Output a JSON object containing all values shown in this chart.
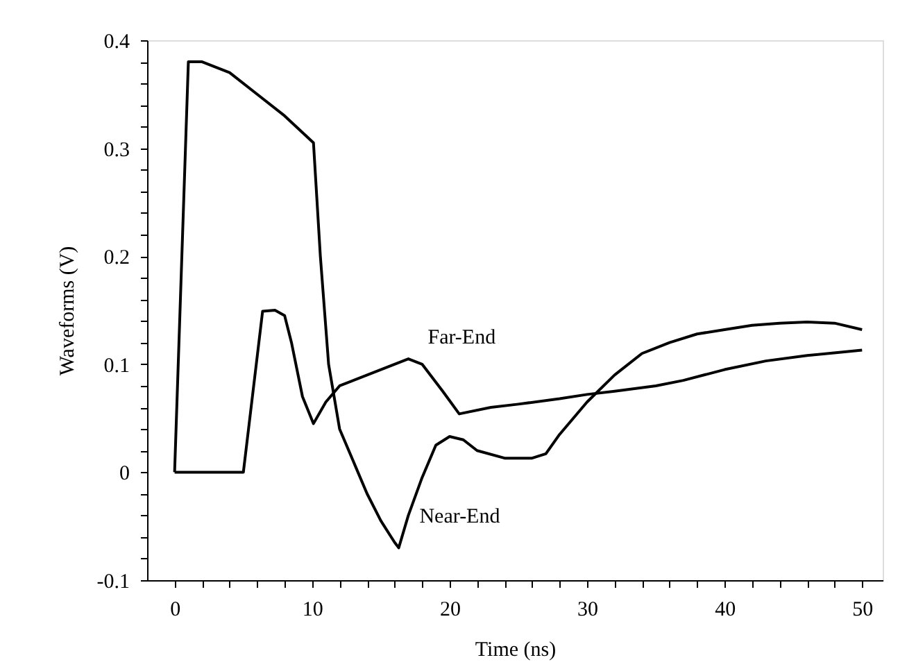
{
  "chart_data": {
    "type": "line",
    "xlabel": "Time (ns)",
    "ylabel": "Waveforms (V)",
    "xlim": [
      -2,
      51.5
    ],
    "ylim": [
      -0.1,
      0.4
    ],
    "xticks": [
      0,
      {
        "value": 2,
        "label": null
      },
      {
        "value": 4,
        "label": null
      },
      {
        "value": 6,
        "label": null
      },
      {
        "value": 8,
        "label": null
      },
      10,
      {
        "value": 12,
        "label": null
      },
      {
        "value": 14,
        "label": null
      },
      {
        "value": 16,
        "label": null
      },
      {
        "value": 18,
        "label": null
      },
      20,
      {
        "value": 22,
        "label": null
      },
      {
        "value": 24,
        "label": null
      },
      {
        "value": 26,
        "label": null
      },
      {
        "value": 28,
        "label": null
      },
      30,
      {
        "value": 32,
        "label": null
      },
      {
        "value": 34,
        "label": null
      },
      {
        "value": 36,
        "label": null
      },
      {
        "value": 38,
        "label": null
      },
      40,
      {
        "value": 42,
        "label": null
      },
      {
        "value": 44,
        "label": null
      },
      {
        "value": 46,
        "label": null
      },
      {
        "value": 48,
        "label": null
      },
      50
    ],
    "yticks": [
      -0.1,
      {
        "value": -0.08,
        "label": null
      },
      {
        "value": -0.06,
        "label": null
      },
      {
        "value": -0.04,
        "label": null
      },
      {
        "value": -0.02,
        "label": null
      },
      0,
      {
        "value": 0.02,
        "label": null
      },
      {
        "value": 0.04,
        "label": null
      },
      {
        "value": 0.06,
        "label": null
      },
      {
        "value": 0.08,
        "label": null
      },
      0.1,
      {
        "value": 0.12,
        "label": null
      },
      {
        "value": 0.14,
        "label": null
      },
      {
        "value": 0.16,
        "label": null
      },
      {
        "value": 0.18,
        "label": null
      },
      0.2,
      {
        "value": 0.22,
        "label": null
      },
      {
        "value": 0.24,
        "label": null
      },
      {
        "value": 0.26,
        "label": null
      },
      {
        "value": 0.28,
        "label": null
      },
      0.3,
      {
        "value": 0.32,
        "label": null
      },
      {
        "value": 0.34,
        "label": null
      },
      {
        "value": 0.36,
        "label": null
      },
      {
        "value": 0.38,
        "label": null
      },
      0.4
    ],
    "grid": false,
    "legend": false,
    "marker": "none",
    "line_style": "solid",
    "series": [
      {
        "color": "#000000",
        "x": [
          0,
          1,
          2,
          4,
          6,
          8,
          10.1,
          10.6,
          11.2,
          12,
          13,
          14,
          15,
          16,
          16.3,
          17,
          18,
          19,
          20,
          21,
          22,
          24,
          26,
          27,
          28,
          30,
          32,
          34,
          36,
          38,
          40,
          42,
          44,
          46,
          48,
          50
        ],
        "values": [
          0,
          0.38,
          0.38,
          0.37,
          0.35,
          0.33,
          0.305,
          0.2,
          0.1,
          0.04,
          0.01,
          -0.02,
          -0.045,
          -0.065,
          -0.07,
          -0.04,
          -0.005,
          0.025,
          0.033,
          0.03,
          0.02,
          0.013,
          0.013,
          0.017,
          0.035,
          0.065,
          0.09,
          0.11,
          0.12,
          0.128,
          0.132,
          0.136,
          0.138,
          0.139,
          0.138,
          0.132
        ]
      },
      {
        "color": "#000000",
        "x": [
          0,
          5,
          6.4,
          7.3,
          8,
          8.5,
          9.3,
          10.1,
          11,
          12,
          14,
          16,
          17,
          18,
          19.5,
          20.7,
          23,
          25,
          28,
          30,
          32,
          35,
          37,
          40,
          43,
          46,
          50
        ],
        "values": [
          0,
          0,
          0.149,
          0.15,
          0.145,
          0.12,
          0.07,
          0.045,
          0.065,
          0.08,
          0.09,
          0.1,
          0.105,
          0.1,
          0.075,
          0.054,
          0.06,
          0.063,
          0.068,
          0.072,
          0.075,
          0.08,
          0.085,
          0.095,
          0.103,
          0.108,
          0.113
        ]
      }
    ],
    "annotations": [
      {
        "text": "Far-End",
        "x": 17,
        "y": 0.105
      },
      {
        "text": "Near-End",
        "x": 17,
        "y": -0.04
      }
    ]
  }
}
